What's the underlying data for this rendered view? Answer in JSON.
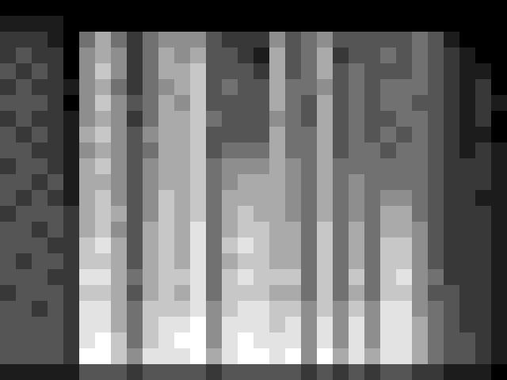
{
  "chart_data": {
    "type": "heatmap",
    "color": "gray",
    "tick_labels": false,
    "cells": [
      [
        0,
        0,
        0,
        0,
        0,
        0,
        0,
        0,
        0,
        0,
        0,
        0,
        0,
        0,
        0,
        0,
        0,
        0,
        0,
        0,
        0,
        0,
        0,
        0,
        0,
        0,
        0,
        0,
        0,
        0,
        0,
        0
      ],
      [
        1,
        1,
        1,
        1,
        0,
        0,
        0,
        0,
        0,
        0,
        0,
        0,
        0,
        0,
        0,
        0,
        0,
        0,
        0,
        0,
        0,
        0,
        0,
        0,
        0,
        0,
        0,
        0,
        0,
        0,
        0,
        0
      ],
      [
        2,
        2,
        2,
        1,
        0,
        4,
        6,
        4,
        2,
        4,
        5,
        5,
        5,
        3,
        2,
        2,
        2,
        5,
        3,
        4,
        5,
        3,
        3,
        3,
        3,
        3,
        4,
        3,
        1,
        0,
        0,
        0
      ],
      [
        2,
        3,
        2,
        2,
        0,
        5,
        6,
        5,
        2,
        4,
        6,
        5,
        6,
        3,
        3,
        2,
        1,
        6,
        3,
        4,
        6,
        2,
        3,
        3,
        4,
        3,
        4,
        3,
        2,
        1,
        0,
        0
      ],
      [
        3,
        2,
        3,
        2,
        0,
        5,
        7,
        5,
        2,
        4,
        6,
        6,
        7,
        3,
        3,
        3,
        2,
        6,
        3,
        4,
        6,
        3,
        4,
        3,
        3,
        3,
        4,
        3,
        2,
        1,
        1,
        0
      ],
      [
        2,
        3,
        2,
        2,
        1,
        5,
        6,
        4,
        2,
        4,
        5,
        6,
        7,
        3,
        4,
        3,
        3,
        6,
        4,
        4,
        5,
        3,
        4,
        3,
        4,
        4,
        4,
        3,
        2,
        1,
        2,
        0
      ],
      [
        3,
        3,
        3,
        2,
        0,
        5,
        7,
        5,
        3,
        4,
        6,
        5,
        7,
        3,
        3,
        3,
        3,
        6,
        4,
        3,
        6,
        3,
        4,
        3,
        4,
        4,
        3,
        3,
        2,
        1,
        2,
        1
      ],
      [
        2,
        3,
        2,
        2,
        1,
        5,
        6,
        5,
        2,
        4,
        6,
        6,
        7,
        4,
        3,
        3,
        3,
        5,
        4,
        3,
        6,
        3,
        4,
        3,
        3,
        4,
        4,
        3,
        2,
        1,
        2,
        0
      ],
      [
        3,
        2,
        3,
        2,
        1,
        6,
        7,
        5,
        3,
        5,
        6,
        6,
        7,
        3,
        3,
        3,
        3,
        6,
        4,
        4,
        6,
        3,
        4,
        3,
        4,
        3,
        4,
        3,
        2,
        1,
        1,
        0
      ],
      [
        3,
        3,
        2,
        2,
        1,
        5,
        6,
        5,
        3,
        4,
        6,
        6,
        7,
        3,
        4,
        4,
        4,
        6,
        4,
        4,
        6,
        3,
        4,
        4,
        3,
        4,
        4,
        3,
        2,
        1,
        2,
        1
      ],
      [
        2,
        3,
        3,
        2,
        1,
        6,
        7,
        5,
        3,
        5,
        6,
        6,
        7,
        4,
        5,
        5,
        5,
        6,
        5,
        4,
        6,
        4,
        4,
        4,
        4,
        4,
        4,
        3,
        2,
        2,
        2,
        1
      ],
      [
        3,
        3,
        2,
        3,
        1,
        6,
        6,
        5,
        3,
        5,
        6,
        6,
        7,
        4,
        5,
        6,
        6,
        6,
        5,
        4,
        6,
        4,
        5,
        4,
        4,
        4,
        4,
        3,
        2,
        2,
        2,
        1
      ],
      [
        3,
        2,
        3,
        2,
        1,
        6,
        7,
        5,
        3,
        5,
        7,
        6,
        7,
        4,
        6,
        6,
        6,
        6,
        5,
        4,
        6,
        4,
        5,
        4,
        5,
        5,
        4,
        3,
        2,
        2,
        1,
        1
      ],
      [
        2,
        3,
        3,
        3,
        2,
        6,
        7,
        6,
        3,
        5,
        7,
        6,
        7,
        4,
        6,
        7,
        6,
        6,
        5,
        4,
        6,
        4,
        5,
        4,
        6,
        6,
        4,
        3,
        2,
        2,
        2,
        1
      ],
      [
        3,
        3,
        2,
        3,
        2,
        6,
        7,
        5,
        3,
        6,
        7,
        6,
        8,
        4,
        6,
        7,
        7,
        6,
        6,
        4,
        7,
        4,
        6,
        4,
        6,
        6,
        5,
        3,
        2,
        2,
        2,
        1
      ],
      [
        3,
        3,
        3,
        2,
        2,
        7,
        8,
        6,
        3,
        6,
        7,
        6,
        8,
        4,
        7,
        8,
        7,
        6,
        6,
        4,
        7,
        4,
        6,
        4,
        7,
        7,
        5,
        3,
        2,
        2,
        2,
        1
      ],
      [
        3,
        2,
        3,
        3,
        2,
        7,
        7,
        6,
        3,
        6,
        7,
        6,
        8,
        4,
        6,
        7,
        7,
        6,
        6,
        4,
        7,
        4,
        6,
        4,
        7,
        7,
        5,
        3,
        2,
        2,
        2,
        1
      ],
      [
        3,
        3,
        3,
        2,
        2,
        8,
        8,
        6,
        4,
        6,
        7,
        7,
        8,
        4,
        7,
        8,
        7,
        7,
        7,
        4,
        7,
        4,
        7,
        4,
        7,
        8,
        5,
        4,
        2,
        2,
        2,
        1
      ],
      [
        2,
        3,
        3,
        3,
        2,
        7,
        7,
        6,
        3,
        6,
        7,
        6,
        8,
        4,
        7,
        7,
        7,
        6,
        6,
        4,
        7,
        4,
        6,
        4,
        7,
        7,
        5,
        3,
        3,
        2,
        2,
        1
      ],
      [
        3,
        3,
        2,
        3,
        2,
        8,
        8,
        6,
        4,
        7,
        7,
        7,
        8,
        5,
        7,
        8,
        8,
        7,
        7,
        5,
        7,
        5,
        7,
        5,
        8,
        8,
        5,
        4,
        3,
        2,
        2,
        1
      ],
      [
        3,
        3,
        3,
        3,
        2,
        8,
        8,
        6,
        4,
        7,
        8,
        8,
        9,
        5,
        8,
        8,
        8,
        7,
        8,
        5,
        8,
        5,
        8,
        5,
        8,
        8,
        6,
        4,
        3,
        2,
        2,
        1
      ],
      [
        3,
        3,
        3,
        3,
        2,
        8,
        9,
        7,
        4,
        7,
        8,
        9,
        9,
        5,
        8,
        9,
        8,
        8,
        8,
        5,
        8,
        5,
        8,
        5,
        8,
        8,
        6,
        4,
        3,
        3,
        2,
        1
      ],
      [
        3,
        3,
        3,
        3,
        2,
        9,
        9,
        7,
        5,
        8,
        8,
        8,
        9,
        6,
        8,
        9,
        9,
        8,
        9,
        5,
        9,
        6,
        8,
        6,
        8,
        8,
        6,
        4,
        3,
        3,
        2,
        1
      ],
      [
        1,
        1,
        1,
        1,
        1,
        3,
        3,
        3,
        2,
        3,
        3,
        3,
        3,
        2,
        3,
        3,
        3,
        3,
        3,
        2,
        3,
        2,
        3,
        2,
        3,
        3,
        2,
        2,
        1,
        1,
        1,
        0
      ]
    ]
  }
}
